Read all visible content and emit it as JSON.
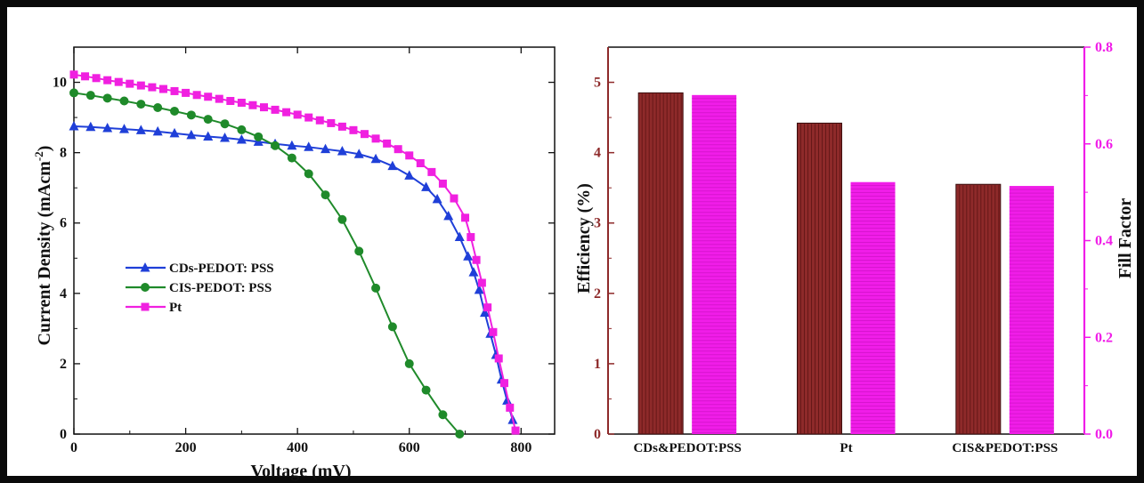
{
  "chart_data": [
    {
      "type": "line",
      "title": "",
      "xlabel": "Voltage (mV)",
      "ylabel": "Current Density (mAcm-2)",
      "ylabel_parts": {
        "main": "Current Density (mAcm",
        "sup": "-2",
        "close": ")"
      },
      "xlim": [
        0,
        860
      ],
      "ylim": [
        0,
        11
      ],
      "xticks": [
        "0",
        "200",
        "400",
        "600",
        "800"
      ],
      "yticks": [
        "0",
        "2",
        "4",
        "6",
        "8",
        "10"
      ],
      "grid": false,
      "legend_position": "center-left",
      "series": [
        {
          "name": "CDs-PEDOT: PSS",
          "color": "#1f3fd8",
          "marker": "triangle",
          "x": [
            0,
            30,
            60,
            90,
            120,
            150,
            180,
            210,
            240,
            270,
            300,
            330,
            360,
            390,
            420,
            450,
            480,
            510,
            540,
            570,
            600,
            630,
            650,
            670,
            690,
            705,
            715,
            725,
            735,
            745,
            755,
            765,
            775,
            785
          ],
          "y": [
            8.75,
            8.73,
            8.7,
            8.67,
            8.64,
            8.6,
            8.55,
            8.5,
            8.46,
            8.42,
            8.37,
            8.31,
            8.25,
            8.2,
            8.16,
            8.1,
            8.04,
            7.96,
            7.82,
            7.62,
            7.35,
            7.02,
            6.68,
            6.2,
            5.6,
            5.05,
            4.6,
            4.1,
            3.45,
            2.85,
            2.25,
            1.55,
            0.95,
            0.4
          ]
        },
        {
          "name": "CIS-PEDOT: PSS",
          "color": "#1f8a2a",
          "marker": "circle",
          "x": [
            0,
            30,
            60,
            90,
            120,
            150,
            180,
            210,
            240,
            270,
            300,
            330,
            360,
            390,
            420,
            450,
            480,
            510,
            540,
            570,
            600,
            630,
            660,
            690
          ],
          "y": [
            9.7,
            9.63,
            9.55,
            9.47,
            9.38,
            9.28,
            9.18,
            9.07,
            8.95,
            8.82,
            8.65,
            8.45,
            8.2,
            7.85,
            7.4,
            6.8,
            6.1,
            5.2,
            4.15,
            3.05,
            2.0,
            1.25,
            0.55,
            0.0
          ]
        },
        {
          "name": "Pt",
          "color": "#f020e0",
          "marker": "square",
          "x": [
            0,
            20,
            40,
            60,
            80,
            100,
            120,
            140,
            160,
            180,
            200,
            220,
            240,
            260,
            280,
            300,
            320,
            340,
            360,
            380,
            400,
            420,
            440,
            460,
            480,
            500,
            520,
            540,
            560,
            580,
            600,
            620,
            640,
            660,
            680,
            700,
            710,
            720,
            730,
            740,
            750,
            760,
            770,
            780,
            790
          ],
          "y": [
            10.22,
            10.17,
            10.12,
            10.06,
            10.01,
            9.96,
            9.91,
            9.86,
            9.81,
            9.75,
            9.7,
            9.64,
            9.59,
            9.53,
            9.47,
            9.42,
            9.35,
            9.29,
            9.22,
            9.15,
            9.08,
            9.0,
            8.92,
            8.84,
            8.74,
            8.64,
            8.53,
            8.4,
            8.26,
            8.1,
            7.92,
            7.7,
            7.45,
            7.12,
            6.7,
            6.15,
            5.6,
            4.95,
            4.3,
            3.6,
            2.9,
            2.15,
            1.45,
            0.75,
            0.1
          ]
        }
      ]
    },
    {
      "type": "bar",
      "title": "",
      "xlabel": "",
      "ylabel": "Efficiency (%)",
      "y2label": "Fill Factor",
      "categories": [
        "CDs&PEDOT:PSS",
        "Pt",
        "CIS&PEDOT:PSS"
      ],
      "ylim": [
        0,
        5.5
      ],
      "y2lim": [
        0,
        0.8
      ],
      "yticks": [
        "0",
        "1",
        "2",
        "3",
        "4",
        "5"
      ],
      "y2ticks": [
        "0.0",
        "0.2",
        "0.4",
        "0.6",
        "0.8"
      ],
      "grid": false,
      "series": [
        {
          "name": "Efficiency",
          "axis": "left",
          "color": "#8e2a2a",
          "values": [
            4.85,
            4.42,
            3.55
          ]
        },
        {
          "name": "Fill Factor",
          "axis": "right",
          "color": "#f01de8",
          "values": [
            0.701,
            0.521,
            0.513
          ]
        }
      ]
    }
  ]
}
